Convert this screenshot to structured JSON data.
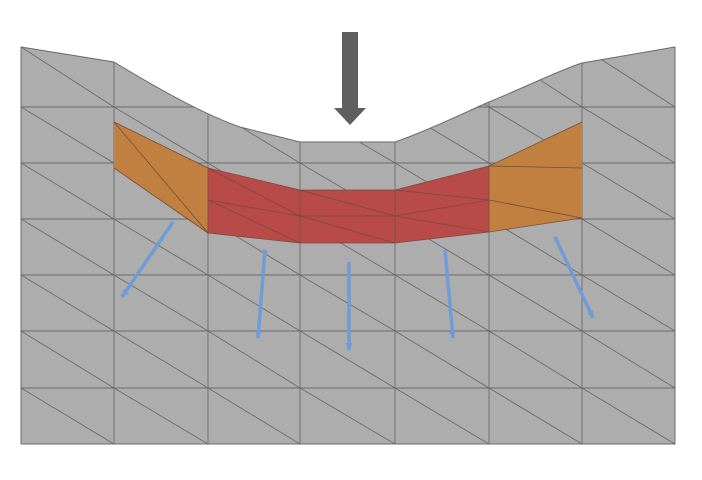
{
  "colors": {
    "background": "#ffffff",
    "mesh_fill": "#adadae",
    "mesh_edge": "#6a6a6a",
    "orange_region": "#c08040",
    "red_region": "#b94a4a",
    "load_arrow": "#5f5f5f",
    "displacement_arrow": "#6f9bd6"
  },
  "icons": {
    "load": "down-arrow-icon",
    "displacement": "blue-arrow-icon"
  }
}
